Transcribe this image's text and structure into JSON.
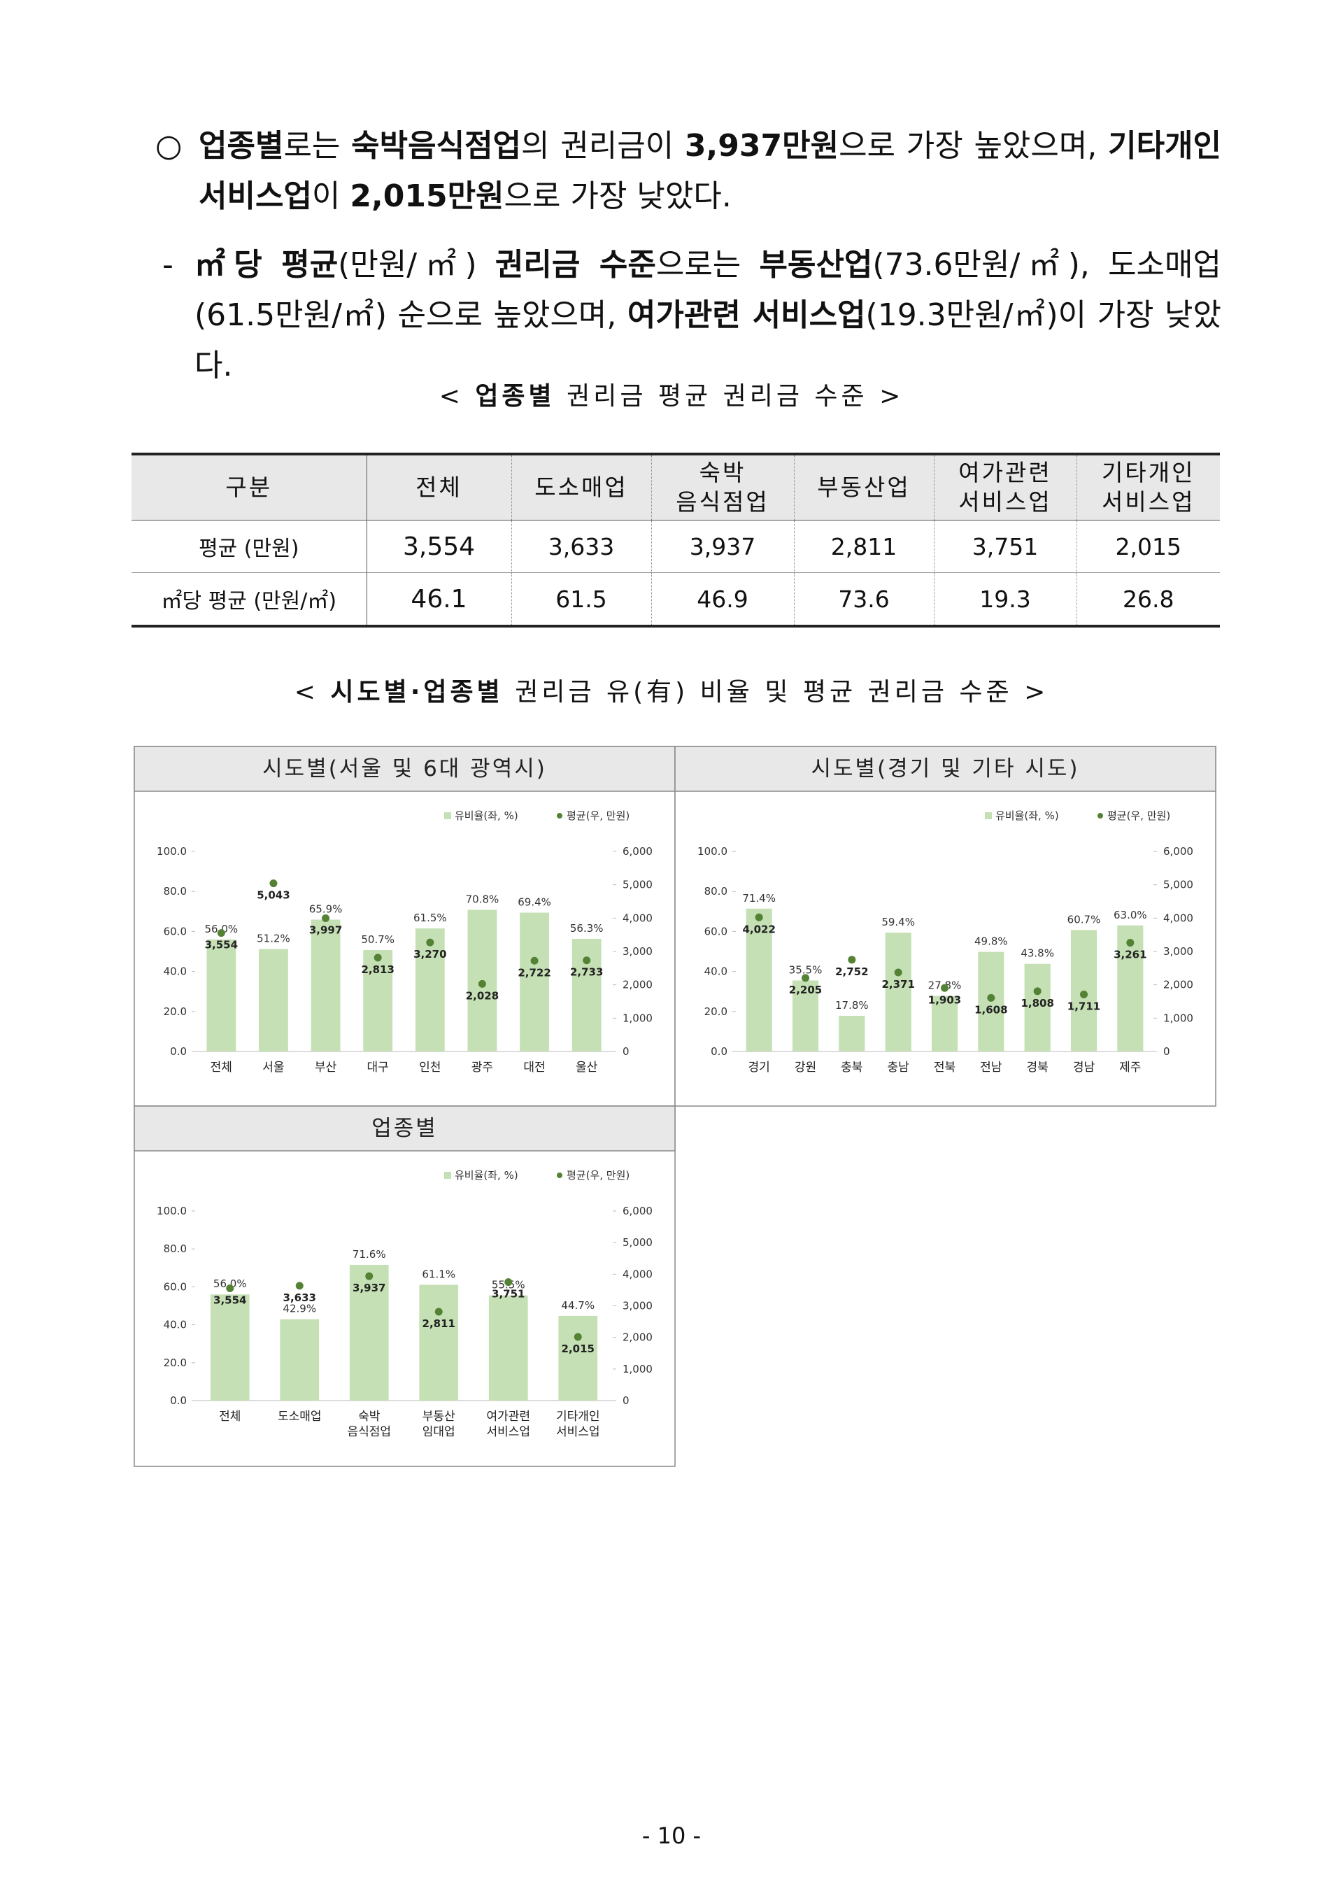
{
  "paragraphs": [
    {
      "marker": "○",
      "runs": [
        {
          "text": "업종별",
          "bold": true
        },
        {
          "text": "로는 "
        },
        {
          "text": "숙박음식점업",
          "bold": true
        },
        {
          "text": "의 권리금이 "
        },
        {
          "text": "3,937만원",
          "bold": true
        },
        {
          "text": "으로 가장 높았으며, "
        },
        {
          "text": "기타개인 서비스업",
          "bold": true
        },
        {
          "text": "이 "
        },
        {
          "text": "2,015만원",
          "bold": true
        },
        {
          "text": "으로 가장 낮았다."
        }
      ]
    },
    {
      "marker": "-",
      "runs": [
        {
          "text": "㎡당 평균",
          "bold": true
        },
        {
          "text": "(만원/㎡) "
        },
        {
          "text": "권리금 수준",
          "bold": true
        },
        {
          "text": "으로는 "
        },
        {
          "text": "부동산업",
          "bold": true
        },
        {
          "text": "(73.6만원/㎡), 도소매업 (61.5만원/㎡) 순으로 높았으며, "
        },
        {
          "text": "여가관련 서비스업",
          "bold": true
        },
        {
          "text": "(19.3만원/㎡)이 가장 낮았다."
        }
      ]
    }
  ],
  "captions": [
    {
      "runs": [
        {
          "text": "< "
        },
        {
          "text": "업종별",
          "bold": true
        },
        {
          "text": " 권리금 평균 권리금 수준 >"
        }
      ]
    },
    {
      "runs": [
        {
          "text": "< "
        },
        {
          "text": "시도별·업종별",
          "bold": true
        },
        {
          "text": " 권리금 유(有) 비율 및 평균 권리금 수준 >"
        }
      ]
    }
  ],
  "table": {
    "header": [
      "구분",
      "전체",
      "도소매업",
      "숙박\n음식점업",
      "부동산업",
      "여가관련\n서비스업",
      "기타개인\n서비스업"
    ],
    "rows": [
      [
        "평균 (만원)",
        "3,554",
        "3,633",
        "3,937",
        "2,811",
        "3,751",
        "2,015"
      ],
      [
        "㎡당 평균 (만원/㎡)",
        "46.1",
        "61.5",
        "46.9",
        "73.6",
        "19.3",
        "26.8"
      ]
    ]
  },
  "chart_data": [
    {
      "type": "bar",
      "title": "시도별(서울 및 6대 광역시)",
      "categories": [
        "전체",
        "서울",
        "부산",
        "대구",
        "인천",
        "광주",
        "대전",
        "울산"
      ],
      "series": [
        {
          "name": "유비율(좌, %)",
          "type": "bar",
          "color": "#c5e0b4",
          "values": [
            56.0,
            51.2,
            65.9,
            50.7,
            61.5,
            70.8,
            69.4,
            56.3
          ],
          "value_labels": [
            "56.0%",
            "51.2%",
            "65.9%",
            "50.7%",
            "61.5%",
            "70.8%",
            "69.4%",
            "56.3%"
          ]
        },
        {
          "name": "평균(우, 만원)",
          "type": "scatter",
          "axis": "y2",
          "color": "#548235",
          "values": [
            3554,
            5043,
            3997,
            2813,
            3270,
            2028,
            2722,
            2733
          ],
          "value_labels": [
            "3,554",
            "5,043",
            "3,997",
            "2,813",
            "3,270",
            "2,028",
            "2,722",
            "2,733"
          ]
        }
      ],
      "ylim": [
        0,
        100
      ],
      "yticks": [
        {
          "value": 0,
          "label": "0.0"
        },
        {
          "value": 20,
          "label": "20.0"
        },
        {
          "value": 40,
          "label": "40.0"
        },
        {
          "value": 60,
          "label": "60.0"
        },
        {
          "value": 80,
          "label": "80.0"
        },
        {
          "value": 100,
          "label": "100.0"
        }
      ],
      "y2lim": [
        0,
        6000
      ],
      "y2ticks": [
        0,
        {
          "value": 1000,
          "label": "1,000"
        },
        {
          "value": 2000,
          "label": "2,000"
        },
        {
          "value": 3000,
          "label": "3,000"
        },
        {
          "value": 4000,
          "label": "4,000"
        },
        {
          "value": 5000,
          "label": "5,000"
        },
        {
          "value": 6000,
          "label": "6,000"
        }
      ]
    },
    {
      "type": "bar",
      "title": "시도별(경기 및 기타 시도)",
      "categories": [
        "경기",
        "강원",
        "충북",
        "충남",
        "전북",
        "전남",
        "경북",
        "경남",
        "제주"
      ],
      "series": [
        {
          "name": "유비율(좌, %)",
          "type": "bar",
          "color": "#c5e0b4",
          "values": [
            71.4,
            35.5,
            17.8,
            59.4,
            27.8,
            49.8,
            43.8,
            60.7,
            63.0
          ],
          "value_labels": [
            "71.4%",
            "35.5%",
            "17.8%",
            "59.4%",
            "27.8%",
            "49.8%",
            "43.8%",
            "60.7%",
            "63.0%"
          ]
        },
        {
          "name": "평균(우, 만원)",
          "type": "scatter",
          "axis": "y2",
          "color": "#548235",
          "values": [
            4022,
            2205,
            2752,
            2371,
            1903,
            1608,
            1808,
            1711,
            3261
          ],
          "value_labels": [
            "4,022",
            "2,205",
            "2,752",
            "2,371",
            "1,903",
            "1,608",
            "1,808",
            "1,711",
            "3,261"
          ]
        }
      ],
      "ylim": [
        0,
        100
      ],
      "yticks": [
        {
          "value": 0,
          "label": "0.0"
        },
        {
          "value": 20,
          "label": "20.0"
        },
        {
          "value": 40,
          "label": "40.0"
        },
        {
          "value": 60,
          "label": "60.0"
        },
        {
          "value": 80,
          "label": "80.0"
        },
        {
          "value": 100,
          "label": "100.0"
        }
      ],
      "y2lim": [
        0,
        6000
      ],
      "y2ticks": [
        0,
        {
          "value": 1000,
          "label": "1,000"
        },
        {
          "value": 2000,
          "label": "2,000"
        },
        {
          "value": 3000,
          "label": "3,000"
        },
        {
          "value": 4000,
          "label": "4,000"
        },
        {
          "value": 5000,
          "label": "5,000"
        },
        {
          "value": 6000,
          "label": "6,000"
        }
      ]
    },
    {
      "type": "bar",
      "title": "업종별",
      "categories": [
        "전체",
        "도소매업",
        "숙박\n음식점업",
        "부동산\n임대업",
        "여가관련\n서비스업",
        "기타개인\n서비스업"
      ],
      "series": [
        {
          "name": "유비율(좌, %)",
          "type": "bar",
          "color": "#c5e0b4",
          "values": [
            56.0,
            42.9,
            71.6,
            61.1,
            55.5,
            44.7
          ],
          "value_labels": [
            "56.0%",
            "42.9%",
            "71.6%",
            "61.1%",
            "55.5%",
            "44.7%"
          ]
        },
        {
          "name": "평균(우, 만원)",
          "type": "scatter",
          "axis": "y2",
          "color": "#548235",
          "values": [
            3554,
            3633,
            3937,
            2811,
            3751,
            2015
          ],
          "value_labels": [
            "3,554",
            "3,633",
            "3,937",
            "2,811",
            "3,751",
            "2,015"
          ]
        }
      ],
      "ylim": [
        0,
        100
      ],
      "yticks": [
        {
          "value": 0,
          "label": "0.0"
        },
        {
          "value": 20,
          "label": "20.0"
        },
        {
          "value": 40,
          "label": "40.0"
        },
        {
          "value": 60,
          "label": "60.0"
        },
        {
          "value": 80,
          "label": "80.0"
        },
        {
          "value": 100,
          "label": "100.0"
        }
      ],
      "y2lim": [
        0,
        6000
      ],
      "y2ticks": [
        0,
        {
          "value": 1000,
          "label": "1,000"
        },
        {
          "value": 2000,
          "label": "2,000"
        },
        {
          "value": 3000,
          "label": "3,000"
        },
        {
          "value": 4000,
          "label": "4,000"
        },
        {
          "value": 5000,
          "label": "5,000"
        },
        {
          "value": 6000,
          "label": "6,000"
        }
      ]
    }
  ],
  "page_number": "- 10 -"
}
